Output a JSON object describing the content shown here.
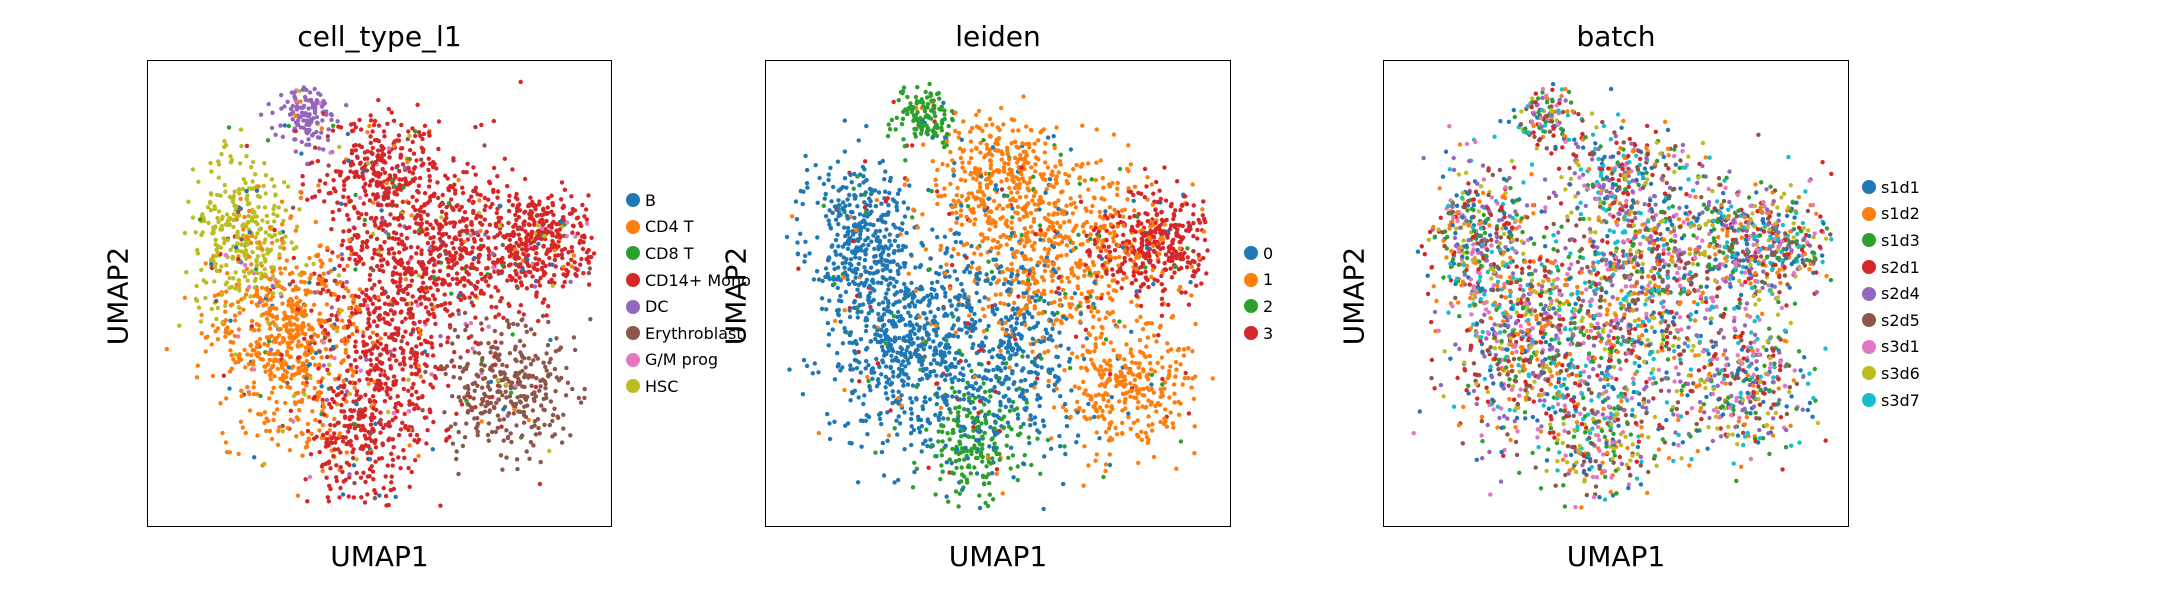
{
  "chart_data": [
    {
      "type": "scatter",
      "title": "cell_type_l1",
      "xlabel": "UMAP1",
      "ylabel": "UMAP2",
      "legend_position": "right",
      "grid": false,
      "categories": [
        {
          "name": "B",
          "color": "#1f77b4"
        },
        {
          "name": "CD4 T",
          "color": "#ff7f0e"
        },
        {
          "name": "CD8 T",
          "color": "#2ca02c"
        },
        {
          "name": "CD14+ Mono",
          "color": "#d62728"
        },
        {
          "name": "DC",
          "color": "#9467bd"
        },
        {
          "name": "Erythroblast",
          "color": "#8c564b"
        },
        {
          "name": "G/M prog",
          "color": "#e377c2"
        },
        {
          "name": "HSC",
          "color": "#bcbd22"
        }
      ]
    },
    {
      "type": "scatter",
      "title": "leiden",
      "xlabel": "UMAP1",
      "ylabel": "UMAP2",
      "legend_position": "right",
      "grid": false,
      "categories": [
        {
          "name": "0",
          "color": "#1f77b4"
        },
        {
          "name": "1",
          "color": "#ff7f0e"
        },
        {
          "name": "2",
          "color": "#2ca02c"
        },
        {
          "name": "3",
          "color": "#d62728"
        }
      ]
    },
    {
      "type": "scatter",
      "title": "batch",
      "xlabel": "UMAP1",
      "ylabel": "UMAP2",
      "legend_position": "right",
      "grid": false,
      "categories": [
        {
          "name": "s1d1",
          "color": "#1f77b4"
        },
        {
          "name": "s1d2",
          "color": "#ff7f0e"
        },
        {
          "name": "s1d3",
          "color": "#2ca02c"
        },
        {
          "name": "s2d1",
          "color": "#d62728"
        },
        {
          "name": "s2d4",
          "color": "#9467bd"
        },
        {
          "name": "s2d5",
          "color": "#8c564b"
        },
        {
          "name": "s3d1",
          "color": "#e377c2"
        },
        {
          "name": "s3d6",
          "color": "#bcbd22"
        },
        {
          "name": "s3d7",
          "color": "#17becf"
        }
      ]
    }
  ]
}
